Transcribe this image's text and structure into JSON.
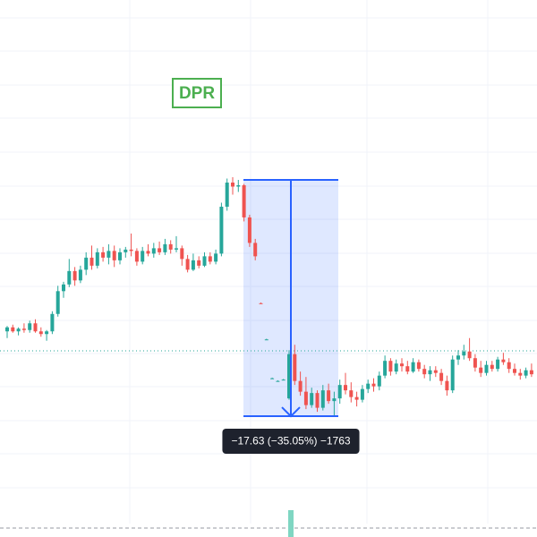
{
  "chart_data": {
    "type": "candlestick",
    "open": [
      39.0,
      39.3,
      39.0,
      39.2,
      39.1,
      39.6,
      39.0,
      38.8,
      39.0,
      40.3,
      42.0,
      42.5,
      43.5,
      42.8,
      43.6,
      44.5,
      43.9,
      44.9,
      44.5,
      45.0,
      44.3,
      44.9,
      45.1,
      45.0,
      44.2,
      45.0,
      44.8,
      45.2,
      44.9,
      45.5,
      45.1,
      45.2,
      44.4,
      43.6,
      44.3,
      43.9,
      44.6,
      44.2,
      44.8,
      48.3,
      50.1,
      49.8,
      49.9,
      47.5,
      45.6,
      41.1,
      38.4,
      35.5,
      35.3,
      35.4,
      34.0,
      37.3,
      35.3,
      34.5,
      33.5,
      34.4,
      33.3,
      34.6,
      33.8,
      34.0,
      35.0,
      34.6,
      34.1,
      33.9,
      34.7,
      35.1,
      34.9,
      35.7,
      36.8,
      36.0,
      36.6,
      36.4,
      36.0,
      36.7,
      36.2,
      35.8,
      36.1,
      35.9,
      35.3,
      34.6,
      36.9,
      37.2,
      37.5,
      37.0,
      36.3,
      35.9,
      36.5,
      36.2,
      36.9,
      36.7,
      36.2,
      35.9,
      35.7,
      36.1
    ],
    "high": [
      39.4,
      39.5,
      39.3,
      39.6,
      39.8,
      39.9,
      39.3,
      39.1,
      40.5,
      42.4,
      42.7,
      44.4,
      43.8,
      43.9,
      44.9,
      45.4,
      45.2,
      45.3,
      45.5,
      45.4,
      45.2,
      45.3,
      46.3,
      45.2,
      45.3,
      45.5,
      45.6,
      45.7,
      45.9,
      45.8,
      46.1,
      45.4,
      44.7,
      44.8,
      44.6,
      44.9,
      44.9,
      45.1,
      48.6,
      50.4,
      50.5,
      50.3,
      50.0,
      47.7,
      45.9,
      41.15,
      38.45,
      35.55,
      35.35,
      35.45,
      37.6,
      38.0,
      36.0,
      35.6,
      34.8,
      34.6,
      35.0,
      35.1,
      34.5,
      35.4,
      35.9,
      35.2,
      34.5,
      35.0,
      35.4,
      35.5,
      36.0,
      37.2,
      37.0,
      36.9,
      37.0,
      36.8,
      37.0,
      36.9,
      36.5,
      36.4,
      36.4,
      36.2,
      35.7,
      37.2,
      37.6,
      38.0,
      38.5,
      37.3,
      36.8,
      36.8,
      36.8,
      37.1,
      37.4,
      37.0,
      36.6,
      36.2,
      36.3,
      36.6
    ],
    "low": [
      38.5,
      38.9,
      38.7,
      38.9,
      38.9,
      38.9,
      38.6,
      38.3,
      38.8,
      40.1,
      41.5,
      42.3,
      42.4,
      42.6,
      43.2,
      43.6,
      43.7,
      44.2,
      44.0,
      43.8,
      44.0,
      44.5,
      44.6,
      43.9,
      44.0,
      44.6,
      44.5,
      44.7,
      44.7,
      44.8,
      44.9,
      43.9,
      43.4,
      43.5,
      43.7,
      43.8,
      44.0,
      44.0,
      44.6,
      48.0,
      49.2,
      49.4,
      47.2,
      45.3,
      44.3,
      41.05,
      38.35,
      35.45,
      35.25,
      35.35,
      33.9,
      35.0,
      34.2,
      33.2,
      33.3,
      33.0,
      33.1,
      33.6,
      32.67,
      33.6,
      34.3,
      33.7,
      33.4,
      33.7,
      34.4,
      34.5,
      34.6,
      35.5,
      35.7,
      35.8,
      36.0,
      35.8,
      35.9,
      36.0,
      35.5,
      35.3,
      35.6,
      35.0,
      34.2,
      34.4,
      36.5,
      36.9,
      36.8,
      36.0,
      35.6,
      35.7,
      36.0,
      36.0,
      36.5,
      35.9,
      35.7,
      35.4,
      35.5,
      35.6
    ],
    "close": [
      39.3,
      39.0,
      39.2,
      39.1,
      39.6,
      39.0,
      38.8,
      39.0,
      40.3,
      42.0,
      42.5,
      43.5,
      42.8,
      43.6,
      44.5,
      43.9,
      44.9,
      44.5,
      45.0,
      44.3,
      44.9,
      45.1,
      45.0,
      44.2,
      45.0,
      44.8,
      45.2,
      44.9,
      45.5,
      45.1,
      45.2,
      44.4,
      43.6,
      44.3,
      43.9,
      44.6,
      44.2,
      44.8,
      48.3,
      50.1,
      49.8,
      49.9,
      47.5,
      45.6,
      44.6,
      41.05,
      38.4,
      35.5,
      35.3,
      35.4,
      37.3,
      35.3,
      34.5,
      33.5,
      34.4,
      33.3,
      34.6,
      33.8,
      34.0,
      35.0,
      34.6,
      34.1,
      33.9,
      34.7,
      35.1,
      34.9,
      35.7,
      36.8,
      36.0,
      36.6,
      36.4,
      36.0,
      36.7,
      36.2,
      35.8,
      36.1,
      35.9,
      35.3,
      34.6,
      36.9,
      37.2,
      37.5,
      37.0,
      36.3,
      35.9,
      36.5,
      36.2,
      36.9,
      36.7,
      36.2,
      35.9,
      35.7,
      36.1,
      35.8
    ],
    "up_color": "#26a69a",
    "down_color": "#ef5350",
    "ylim": [
      23.66,
      63.72
    ],
    "grid": true,
    "price_line": 37.55,
    "price_line_color": "#26a69a",
    "annotation": "DPR",
    "annotation_color": "#4caf50",
    "measure": {
      "from": 50.3,
      "to": 32.67,
      "label": "−17.63 (−35.05%) −1763",
      "color": "#2962ff"
    }
  }
}
